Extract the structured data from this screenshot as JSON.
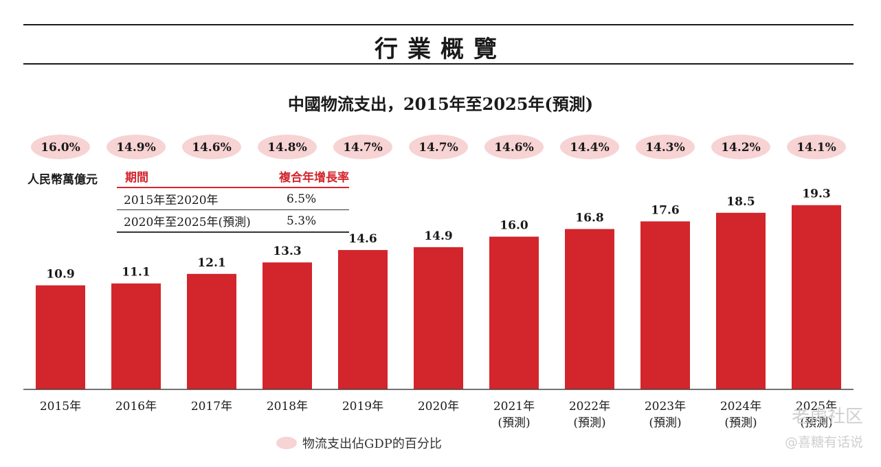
{
  "header": {
    "title": "行業概覽"
  },
  "chart_data": {
    "type": "bar",
    "title": "中國物流支出，2015年至2025年(預測)",
    "ylabel": "人民幣萬億元",
    "categories": [
      "2015年",
      "2016年",
      "2017年",
      "2018年",
      "2019年",
      "2020年",
      "2021年",
      "2022年",
      "2023年",
      "2024年",
      "2025年"
    ],
    "category_notes": [
      "",
      "",
      "",
      "",
      "",
      "",
      "(預測)",
      "(預測)",
      "(預測)",
      "(預測)",
      "(預測)"
    ],
    "values": [
      10.9,
      11.1,
      12.1,
      13.3,
      14.6,
      14.9,
      16.0,
      16.8,
      17.6,
      18.5,
      19.3
    ],
    "value_labels": [
      "10.9",
      "11.1",
      "12.1",
      "13.3",
      "14.6",
      "14.9",
      "16.0",
      "16.8",
      "17.6",
      "18.5",
      "19.3"
    ],
    "gdp_share": [
      "16.0%",
      "14.9%",
      "14.6%",
      "14.8%",
      "14.7%",
      "14.7%",
      "14.6%",
      "14.4%",
      "14.3%",
      "14.2%",
      "14.1%"
    ],
    "gdp_share_legend": "物流支出佔GDP的百分比",
    "ylim": [
      0,
      20
    ],
    "bar_color": "#d3252c",
    "bubble_color": "#f7d3d4",
    "cagr_table": {
      "headers": [
        "期間",
        "複合年增長率"
      ],
      "rows": [
        {
          "period": "2015年至2020年",
          "rate": "6.5%"
        },
        {
          "period": "2020年至2025年(預測)",
          "rate": "5.3%"
        }
      ]
    }
  },
  "watermark": {
    "line1": "老虎社区",
    "line2": "@喜糖有话说"
  }
}
